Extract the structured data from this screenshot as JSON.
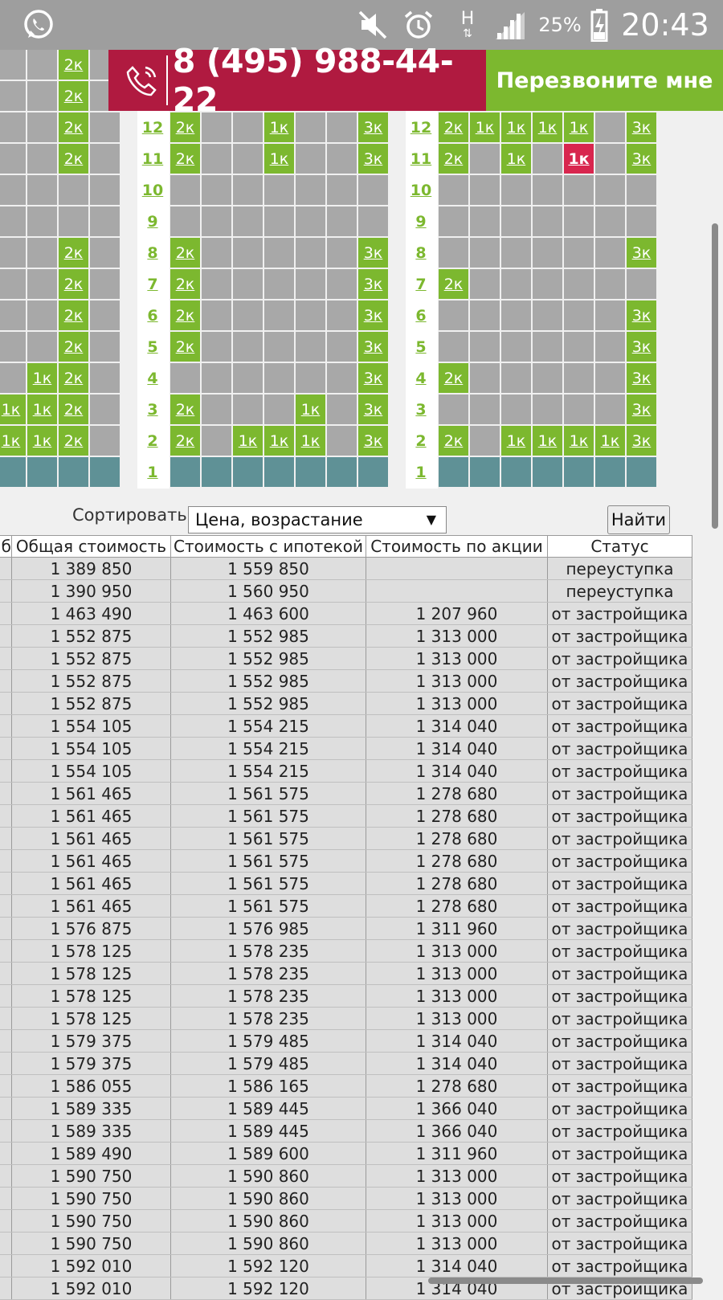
{
  "status_bar": {
    "battery_percent": "25%",
    "time": "20:43",
    "network_label": "H",
    "icons": [
      "whatsapp-icon",
      "mute-icon",
      "alarm-icon",
      "signal-icon",
      "battery-charging-icon"
    ]
  },
  "banner": {
    "phone": "8 (495) 988-44-22",
    "callback_label": "Перезвоните мне"
  },
  "colors": {
    "available": "#7cb82f",
    "selected": "#d8264e",
    "unavailable": "#a8a8a8",
    "ground": "#5f9196",
    "phone_bg": "#b01a40"
  },
  "grid": {
    "floor_labels": [
      "12",
      "11",
      "10",
      "9",
      "8",
      "7",
      "6",
      "5",
      "4",
      "3",
      "2",
      "1"
    ],
    "left_partial": {
      "rows": [
        [
          "",
          "",
          "2к",
          ""
        ],
        [
          "",
          "",
          "2к",
          ""
        ],
        [
          "",
          "",
          "2к",
          ""
        ],
        [
          "",
          "",
          "2к",
          ""
        ],
        [
          "",
          "",
          "",
          ""
        ],
        [
          "",
          "",
          "",
          ""
        ],
        [
          "",
          "",
          "2к",
          ""
        ],
        [
          "",
          "",
          "2к",
          ""
        ],
        [
          "",
          "",
          "2к",
          ""
        ],
        [
          "",
          "",
          "2к",
          ""
        ],
        [
          "",
          "1к",
          "2к",
          ""
        ],
        [
          "1к",
          "1к",
          "2к",
          ""
        ],
        [
          "1к",
          "1к",
          "2к",
          ""
        ],
        [
          "G",
          "G",
          "G",
          "G"
        ]
      ]
    },
    "middle_section": {
      "rows": [
        [
          "2к",
          "",
          "",
          "1к",
          "",
          "",
          "3к"
        ],
        [
          "2к",
          "",
          "",
          "1к",
          "",
          "",
          "3к"
        ],
        [
          "",
          "",
          "",
          "",
          "",
          "",
          ""
        ],
        [
          "",
          "",
          "",
          "",
          "",
          "",
          ""
        ],
        [
          "2к",
          "",
          "",
          "",
          "",
          "",
          "3к"
        ],
        [
          "2к",
          "",
          "",
          "",
          "",
          "",
          "3к"
        ],
        [
          "2к",
          "",
          "",
          "",
          "",
          "",
          "3к"
        ],
        [
          "2к",
          "",
          "",
          "",
          "",
          "",
          "3к"
        ],
        [
          "",
          "",
          "",
          "",
          "",
          "",
          "3к"
        ],
        [
          "2к",
          "",
          "",
          "",
          "1к",
          "",
          "3к"
        ],
        [
          "2к",
          "",
          "1к",
          "1к",
          "1к",
          "",
          "3к"
        ],
        [
          "G",
          "G",
          "G",
          "G",
          "G",
          "G",
          "G"
        ]
      ]
    },
    "right_section": {
      "rows": [
        [
          "2к",
          "1к",
          "1к",
          "1к",
          "1к",
          "",
          "3к"
        ],
        [
          "2к",
          "",
          "1к",
          "",
          "1к*",
          "",
          "3к"
        ],
        [
          "",
          "",
          "",
          "",
          "",
          "",
          ""
        ],
        [
          "",
          "",
          "",
          "",
          "",
          "",
          ""
        ],
        [
          "",
          "",
          "",
          "",
          "",
          "",
          "3к"
        ],
        [
          "2к",
          "",
          "",
          "",
          "",
          "",
          ""
        ],
        [
          "",
          "",
          "",
          "",
          "",
          "",
          "3к"
        ],
        [
          "",
          "",
          "",
          "",
          "",
          "",
          "3к"
        ],
        [
          "2к",
          "",
          "",
          "",
          "",
          "",
          "3к"
        ],
        [
          "",
          "",
          "",
          "",
          "",
          "",
          "3к"
        ],
        [
          "2к",
          "",
          "1к",
          "1к",
          "1к",
          "1к",
          "3к"
        ],
        [
          "G",
          "G",
          "G",
          "G",
          "G",
          "G",
          "G"
        ]
      ]
    }
  },
  "sort": {
    "label": "Сортировать",
    "selected": "Цена, возрастание",
    "find_label": "Найти"
  },
  "table": {
    "headers": [
      "б",
      "Общая стоимость",
      "Стоимость с ипотекой",
      "Стоимость по акции",
      "Статус"
    ],
    "rows": [
      [
        "",
        "1 389 850",
        "1 559 850",
        "",
        "переуступка"
      ],
      [
        "",
        "1 390 950",
        "1 560 950",
        "",
        "переуступка"
      ],
      [
        "",
        "1 463 490",
        "1 463 600",
        "1 207 960",
        "от застройщика"
      ],
      [
        "",
        "1 552 875",
        "1 552 985",
        "1 313 000",
        "от застройщика"
      ],
      [
        "",
        "1 552 875",
        "1 552 985",
        "1 313 000",
        "от застройщика"
      ],
      [
        "",
        "1 552 875",
        "1 552 985",
        "1 313 000",
        "от застройщика"
      ],
      [
        "",
        "1 552 875",
        "1 552 985",
        "1 313 000",
        "от застройщика"
      ],
      [
        "",
        "1 554 105",
        "1 554 215",
        "1 314 040",
        "от застройщика"
      ],
      [
        "",
        "1 554 105",
        "1 554 215",
        "1 314 040",
        "от застройщика"
      ],
      [
        "",
        "1 554 105",
        "1 554 215",
        "1 314 040",
        "от застройщика"
      ],
      [
        "",
        "1 561 465",
        "1 561 575",
        "1 278 680",
        "от застройщика"
      ],
      [
        "",
        "1 561 465",
        "1 561 575",
        "1 278 680",
        "от застройщика"
      ],
      [
        "",
        "1 561 465",
        "1 561 575",
        "1 278 680",
        "от застройщика"
      ],
      [
        "",
        "1 561 465",
        "1 561 575",
        "1 278 680",
        "от застройщика"
      ],
      [
        "",
        "1 561 465",
        "1 561 575",
        "1 278 680",
        "от застройщика"
      ],
      [
        "",
        "1 561 465",
        "1 561 575",
        "1 278 680",
        "от застройщика"
      ],
      [
        "",
        "1 576 875",
        "1 576 985",
        "1 311 960",
        "от застройщика"
      ],
      [
        "",
        "1 578 125",
        "1 578 235",
        "1 313 000",
        "от застройщика"
      ],
      [
        "",
        "1 578 125",
        "1 578 235",
        "1 313 000",
        "от застройщика"
      ],
      [
        "",
        "1 578 125",
        "1 578 235",
        "1 313 000",
        "от застройщика"
      ],
      [
        "",
        "1 578 125",
        "1 578 235",
        "1 313 000",
        "от застройщика"
      ],
      [
        "",
        "1 579 375",
        "1 579 485",
        "1 314 040",
        "от застройщика"
      ],
      [
        "",
        "1 579 375",
        "1 579 485",
        "1 314 040",
        "от застройщика"
      ],
      [
        "",
        "1 586 055",
        "1 586 165",
        "1 278 680",
        "от застройщика"
      ],
      [
        "",
        "1 589 335",
        "1 589 445",
        "1 366 040",
        "от застройщика"
      ],
      [
        "",
        "1 589 335",
        "1 589 445",
        "1 366 040",
        "от застройщика"
      ],
      [
        "",
        "1 589 490",
        "1 589 600",
        "1 311 960",
        "от застройщика"
      ],
      [
        "",
        "1 590 750",
        "1 590 860",
        "1 313 000",
        "от застройщика"
      ],
      [
        "",
        "1 590 750",
        "1 590 860",
        "1 313 000",
        "от застройщика"
      ],
      [
        "",
        "1 590 750",
        "1 590 860",
        "1 313 000",
        "от застройщика"
      ],
      [
        "",
        "1 590 750",
        "1 590 860",
        "1 313 000",
        "от застройщика"
      ],
      [
        "",
        "1 592 010",
        "1 592 120",
        "1 314 040",
        "от застройщика"
      ],
      [
        "",
        "1 592 010",
        "1 592 120",
        "1 314 040",
        "от застройщика"
      ]
    ]
  }
}
